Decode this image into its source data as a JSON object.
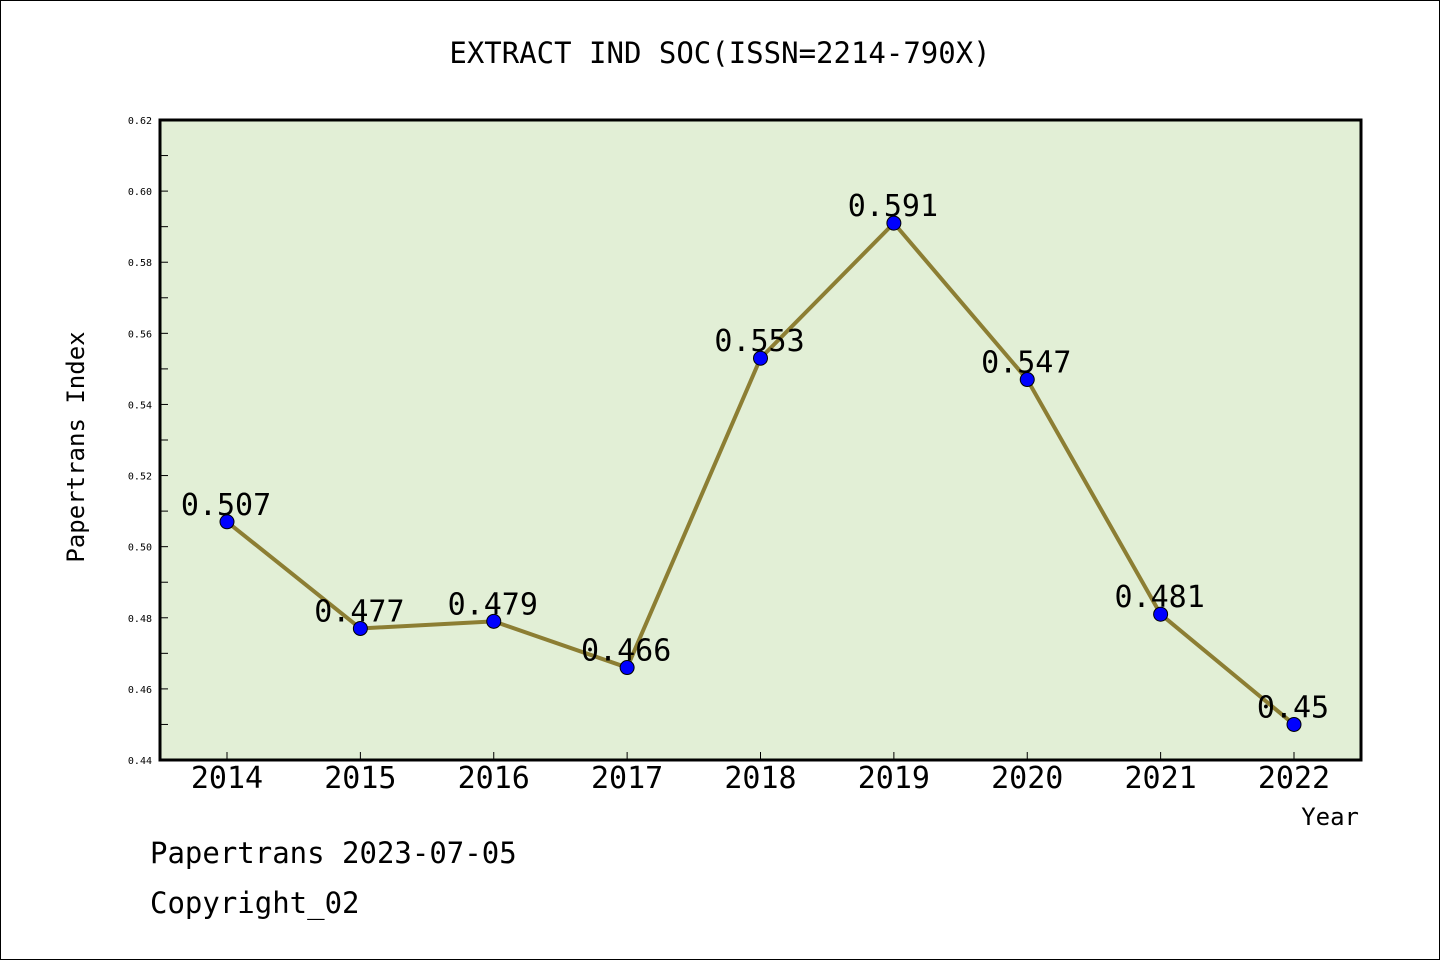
{
  "chart_data": {
    "type": "line",
    "title": "EXTRACT IND SOC(ISSN=2214-790X)",
    "xlabel": "Year",
    "ylabel": "Papertrans Index",
    "categories": [
      "2014",
      "2015",
      "2016",
      "2017",
      "2018",
      "2019",
      "2020",
      "2021",
      "2022"
    ],
    "values": [
      0.507,
      0.477,
      0.479,
      0.466,
      0.553,
      0.591,
      0.547,
      0.481,
      0.45
    ],
    "data_labels": [
      "0.507",
      "0.477",
      "0.479",
      "0.466",
      "0.553",
      "0.591",
      "0.547",
      "0.481",
      "0.45"
    ],
    "ylim": [
      0.44,
      0.62
    ],
    "yticks": [
      "0.44",
      "0.46",
      "0.48",
      "0.50",
      "0.52",
      "0.54",
      "0.56",
      "0.58",
      "0.60",
      "0.62"
    ],
    "grid": false,
    "colors": {
      "plot_background": "#e2efd6",
      "line": "#8c7e33",
      "marker": "#0000ff"
    }
  },
  "footer": {
    "line1": "Papertrans 2023-07-05",
    "line2": "Copyright_02"
  }
}
